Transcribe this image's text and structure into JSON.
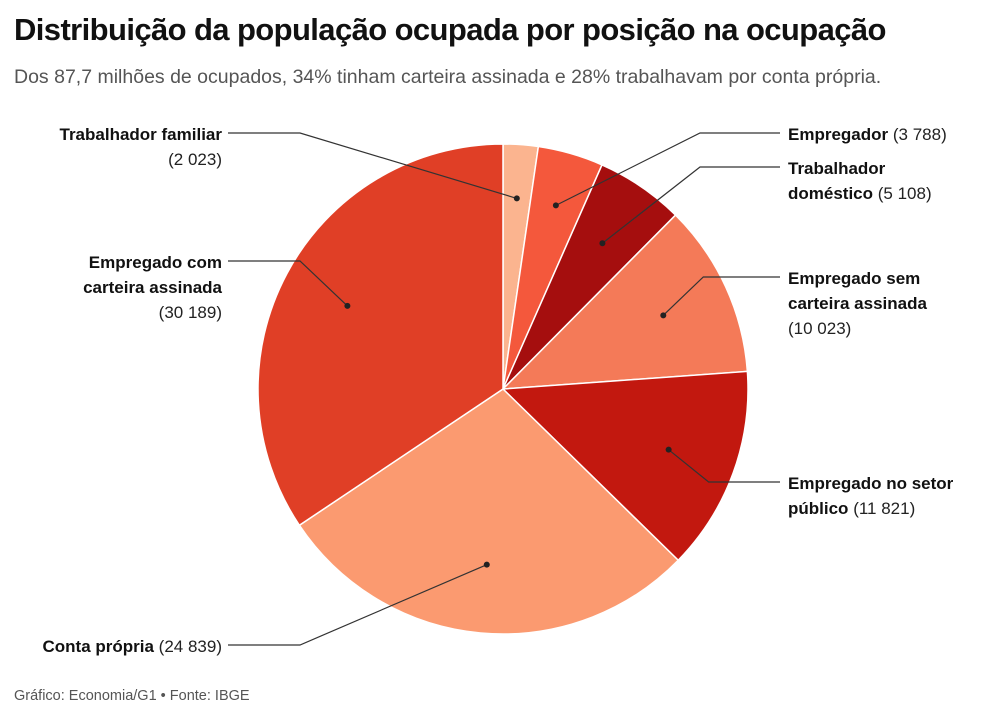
{
  "title": "Distribuição da população ocupada por posição na ocupação",
  "subtitle": "Dos 87,7 milhões de ocupados, 34% tinham carteira assinada e 28% trabalhavam por conta própria.",
  "footer": "Gráfico: Economia/G1 • Fonte: IBGE",
  "chart_data": {
    "type": "pie",
    "slices": [
      {
        "name": "Trabalhador familiar",
        "value": 2023,
        "value_label": "(2 023)",
        "color": "#fbb48f"
      },
      {
        "name": "Empregador",
        "value": 3788,
        "value_label": "(3 788)",
        "color": "#f4583c"
      },
      {
        "name": "Trabalhador doméstico",
        "value": 5108,
        "value_label": "(5 108)",
        "color": "#a50e0e"
      },
      {
        "name": "Empregado sem carteira assinada",
        "value": 10023,
        "value_label": "(10 023)",
        "color": "#f47a58"
      },
      {
        "name": "Empregado no setor público",
        "value": 11821,
        "value_label": "(11 821)",
        "color": "#c2180f"
      },
      {
        "name": "Conta própria",
        "value": 24839,
        "value_label": "(24 839)",
        "color": "#fb9a70"
      },
      {
        "name": "Empregado com carteira assinada",
        "value": 30189,
        "value_label": "(30 189)",
        "color": "#e03f26"
      }
    ],
    "label_lines": {
      "0": [
        "Trabalhador familiar"
      ],
      "1": [
        "Empregador"
      ],
      "2": [
        "Trabalhador",
        "doméstico"
      ],
      "3": [
        "Empregado sem",
        "carteira assinada"
      ],
      "4": [
        "Empregado no setor",
        "público"
      ],
      "5": [
        "Conta própria"
      ],
      "6": [
        "Empregado com",
        "carteira assinada"
      ]
    },
    "start": "top",
    "direction": "clockwise",
    "legend": "none"
  }
}
